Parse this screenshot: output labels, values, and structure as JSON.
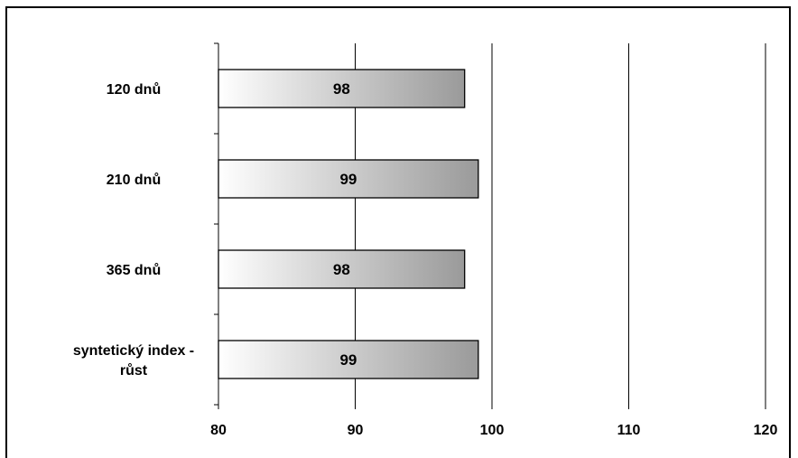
{
  "chart_data": {
    "type": "bar",
    "orientation": "horizontal",
    "title": "",
    "xlabel": "",
    "ylabel": "",
    "categories": [
      [
        "120 dnů"
      ],
      [
        "210 dnů"
      ],
      [
        "365 dnů"
      ],
      [
        "syntetický index -",
        "růst"
      ]
    ],
    "values": [
      98,
      99,
      98,
      99
    ],
    "data_labels": [
      "98",
      "99",
      "98",
      "99"
    ],
    "xlim": [
      80,
      120
    ],
    "xticks": [
      80,
      90,
      100,
      110,
      120
    ],
    "xtick_labels": [
      "80",
      "90",
      "100",
      "110",
      "120"
    ],
    "grid": "vertical",
    "legend": "none",
    "bar_fill": "gradient white-to-gray",
    "colors": {
      "bar_gradient_start": "#ffffff",
      "bar_gradient_end": "#9a9a9a",
      "bar_stroke": "#000000",
      "grid": "#000000",
      "frame": "#000000"
    }
  }
}
